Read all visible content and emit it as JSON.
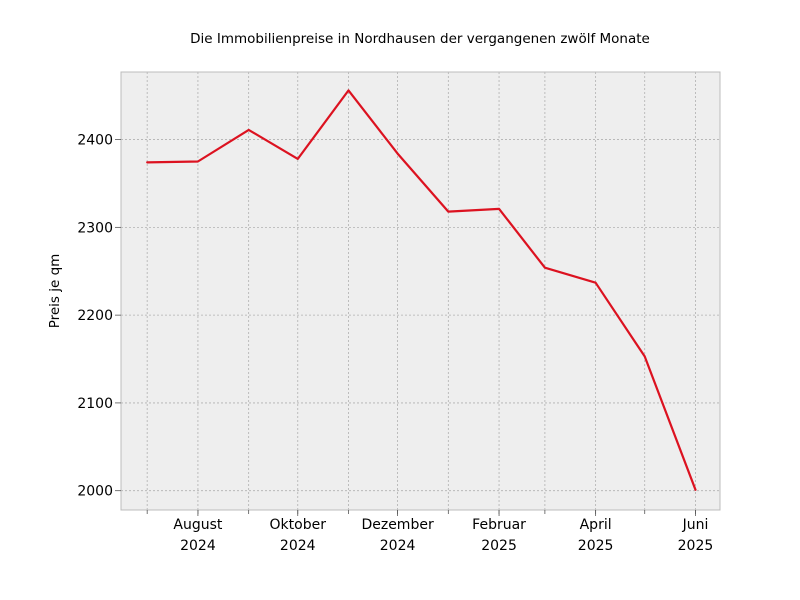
{
  "chart_data": {
    "type": "line",
    "title": "Die Immobilienpreise in Nordhausen der vergangenen zwölf Monate",
    "xlabel": "",
    "ylabel": "Preis je qm",
    "x": [
      "2024-07",
      "2024-08",
      "2024-09",
      "2024-10",
      "2024-11",
      "2024-12",
      "2025-01",
      "2025-02",
      "2025-03",
      "2025-04",
      "2025-05",
      "2025-06"
    ],
    "series": [
      {
        "values": [
          2374,
          2375,
          2411,
          2378,
          2456,
          2384,
          2318,
          2321,
          2254,
          2237,
          2153,
          2001
        ]
      }
    ],
    "x_tick_labels": [
      {
        "x": "2024-08",
        "line1": "August",
        "line2": "2024"
      },
      {
        "x": "2024-10",
        "line1": "Oktober",
        "line2": "2024"
      },
      {
        "x": "2024-12",
        "line1": "Dezember",
        "line2": "2024"
      },
      {
        "x": "2025-02",
        "line1": "Februar",
        "line2": "2025"
      },
      {
        "x": "2025-04",
        "line1": "April",
        "line2": "2025"
      },
      {
        "x": "2025-06",
        "line1": "Juni",
        "line2": "2025"
      }
    ],
    "y_ticks": [
      2000,
      2100,
      2200,
      2300,
      2400
    ],
    "ylim": [
      1978,
      2477
    ],
    "xlim": [
      "2024-06-15",
      "2025-06-16"
    ],
    "grid": true,
    "colors": {
      "line": "#dc1220",
      "plot_background": "#eeeeee",
      "grid": "#b0b0b0",
      "frame": "#bcbcbc"
    }
  }
}
